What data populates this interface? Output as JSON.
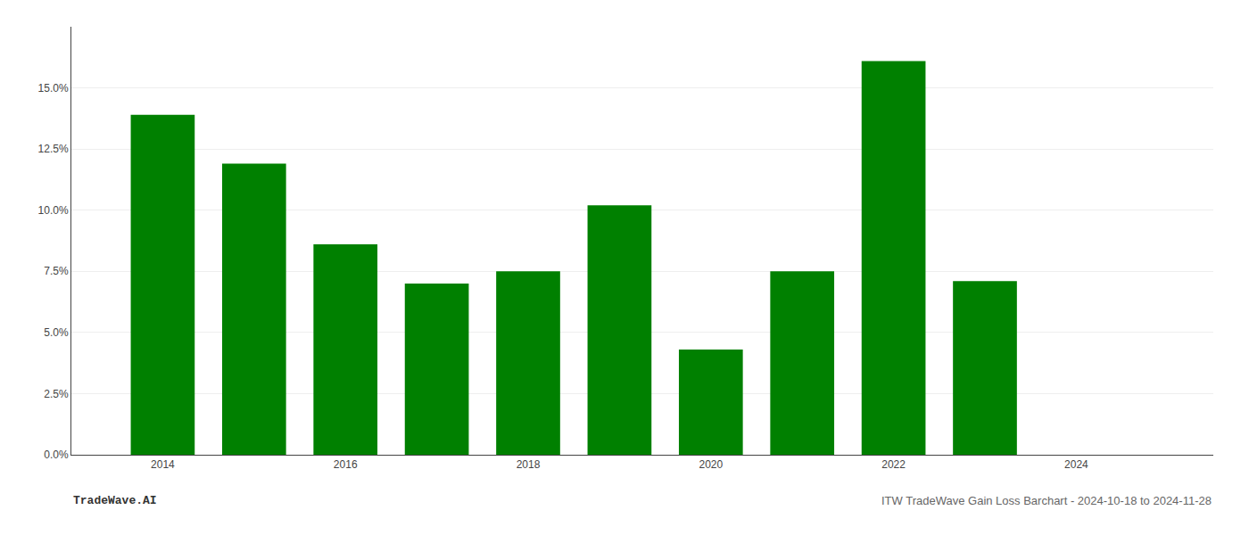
{
  "chart_data": {
    "type": "bar",
    "x": [
      2014,
      2015,
      2016,
      2017,
      2018,
      2019,
      2020,
      2021,
      2022,
      2023
    ],
    "values": [
      0.139,
      0.119,
      0.086,
      0.07,
      0.075,
      0.102,
      0.043,
      0.075,
      0.161,
      0.071
    ],
    "color": "#008000",
    "xlim": [
      2013.0,
      2025.5
    ],
    "xticks": [
      2014,
      2016,
      2018,
      2020,
      2022,
      2024
    ],
    "ylim": [
      0.0,
      0.175
    ],
    "yticks": [
      {
        "value": 0.0,
        "label": "0.0%"
      },
      {
        "value": 0.025,
        "label": "2.5%"
      },
      {
        "value": 0.05,
        "label": "5.0%"
      },
      {
        "value": 0.075,
        "label": "7.5%"
      },
      {
        "value": 0.1,
        "label": "10.0%"
      },
      {
        "value": 0.125,
        "label": "12.5%"
      },
      {
        "value": 0.15,
        "label": "15.0%"
      }
    ],
    "grid": true,
    "annotations": [
      "TradeWave.AI",
      "ITW TradeWave Gain Loss Barchart - 2024-10-18 to 2024-11-28"
    ]
  }
}
